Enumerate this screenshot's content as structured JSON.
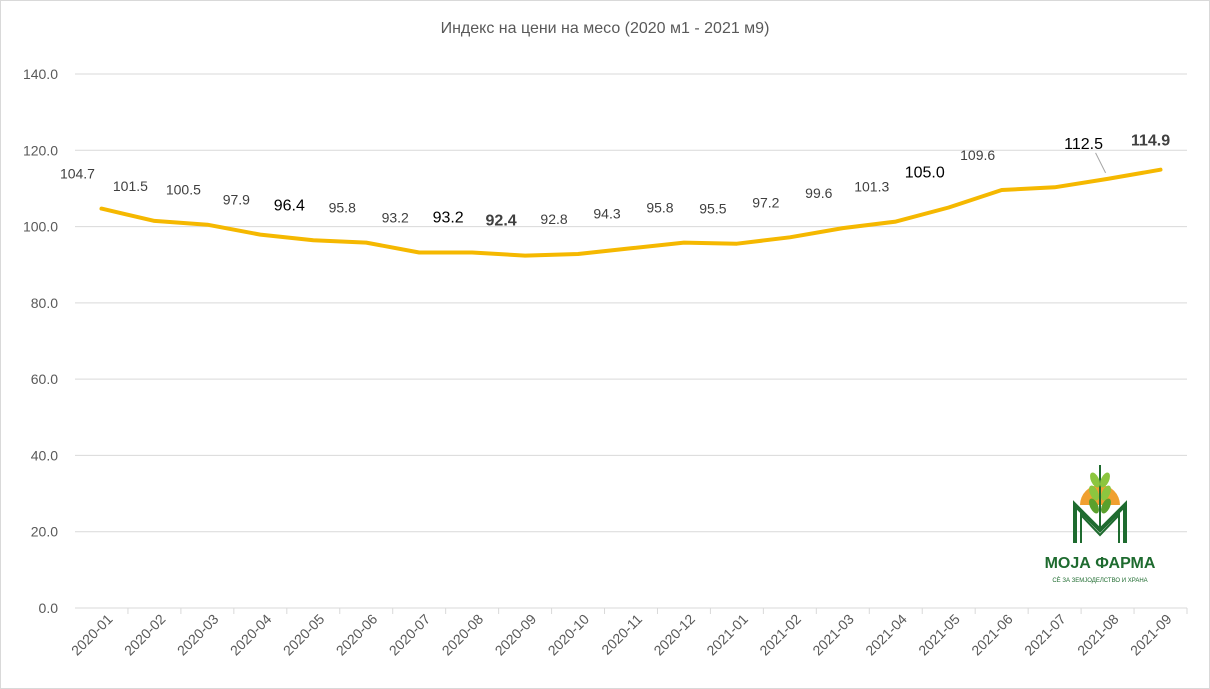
{
  "chart_data": {
    "type": "line",
    "title": "Индекс на цени на месо  (2020 м1 - 2021 м9)",
    "xlabel": "",
    "ylabel": "",
    "ylim": [
      0,
      140
    ],
    "yticks": [
      "0.0",
      "20.0",
      "40.0",
      "60.0",
      "80.0",
      "100.0",
      "120.0",
      "140.0"
    ],
    "grid": true,
    "legend": "none",
    "categories": [
      "2020-01",
      "2020-02",
      "2020-03",
      "2020-04",
      "2020-05",
      "2020-06",
      "2020-07",
      "2020-08",
      "2020-09",
      "2020-10",
      "2020-11",
      "2020-12",
      "2021-01",
      "2021-02",
      "2021-03",
      "2021-04",
      "2021-05",
      "2021-06",
      "2021-07",
      "2021-08",
      "2021-09"
    ],
    "series": [
      {
        "values": [
          104.7,
          101.5,
          100.5,
          97.9,
          96.4,
          95.8,
          93.2,
          93.2,
          92.4,
          92.8,
          94.3,
          95.8,
          95.5,
          97.2,
          99.6,
          101.3,
          105.0,
          109.6,
          110.3,
          112.5,
          114.9
        ],
        "labels": [
          "104.7",
          "101.5",
          "100.5",
          "97.9",
          "96.4",
          "95.8",
          "93.2",
          "93.2",
          "92.4",
          "92.8",
          "94.3",
          "95.8",
          "95.5",
          "97.2",
          "99.6",
          "101.3",
          "105.0",
          "109.6",
          "",
          "112.5",
          "114.9"
        ],
        "color": "#f5b800"
      }
    ],
    "highlight_labels": {
      "red": [
        "2020-09",
        "2021-09"
      ],
      "large": [
        "2020-05",
        "2020-08",
        "2021-05",
        "2021-08"
      ]
    },
    "colors": {
      "line": "#f5b800",
      "grid": "#d9d9d9",
      "highlight": "#ff0000",
      "text": "#595959"
    }
  },
  "logo": {
    "name": "МОЈА ФАРМА",
    "tagline": "СЀ ЗА ЗЕМЈОДЕЛСТВО И ХРАНА",
    "colors": {
      "green": "#1e6b2f",
      "orange": "#f0a030",
      "leaf": "#8cc63f"
    }
  }
}
